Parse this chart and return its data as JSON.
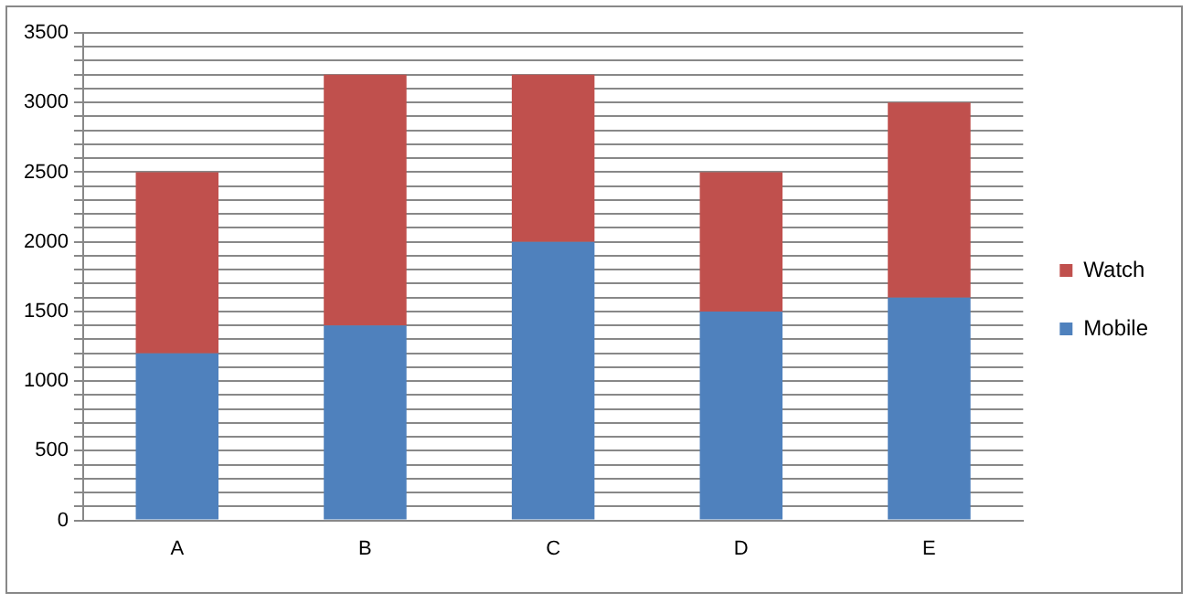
{
  "chart_data": {
    "type": "bar",
    "stacked": true,
    "categories": [
      "A",
      "B",
      "C",
      "D",
      "E"
    ],
    "series": [
      {
        "name": "Mobile",
        "color": "#4f81bd",
        "values": [
          1200,
          1400,
          2000,
          1500,
          1600
        ]
      },
      {
        "name": "Watch",
        "color": "#c0504d",
        "values": [
          1300,
          1800,
          1200,
          1000,
          1400
        ]
      }
    ],
    "ylim": [
      0,
      3500
    ],
    "yticks": [
      0,
      {
        "value": 100,
        "label": null
      },
      {
        "value": 200,
        "label": null
      },
      {
        "value": 300,
        "label": null
      },
      {
        "value": 400,
        "label": null
      },
      500,
      {
        "value": 600,
        "label": null
      },
      {
        "value": 700,
        "label": null
      },
      {
        "value": 800,
        "label": null
      },
      {
        "value": 900,
        "label": null
      },
      1000,
      {
        "value": 1100,
        "label": null
      },
      {
        "value": 1200,
        "label": null
      },
      {
        "value": 1300,
        "label": null
      },
      {
        "value": 1400,
        "label": null
      },
      1500,
      {
        "value": 1600,
        "label": null
      },
      {
        "value": 1700,
        "label": null
      },
      {
        "value": 1800,
        "label": null
      },
      {
        "value": 1900,
        "label": null
      },
      2000,
      {
        "value": 2100,
        "label": null
      },
      {
        "value": 2200,
        "label": null
      },
      {
        "value": 2300,
        "label": null
      },
      {
        "value": 2400,
        "label": null
      },
      2500,
      {
        "value": 2600,
        "label": null
      },
      {
        "value": 2700,
        "label": null
      },
      {
        "value": 2800,
        "label": null
      },
      {
        "value": 2900,
        "label": null
      },
      3000,
      {
        "value": 3100,
        "label": null
      },
      {
        "value": 3200,
        "label": null
      },
      {
        "value": 3300,
        "label": null
      },
      {
        "value": 3400,
        "label": null
      },
      3500
    ],
    "grid": "y",
    "legend": "right"
  }
}
